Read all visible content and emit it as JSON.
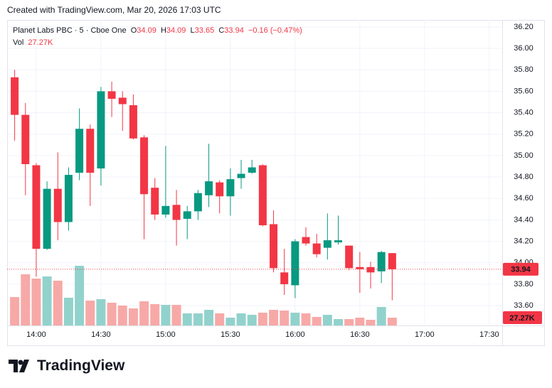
{
  "header": {
    "created": "Created with TradingView.com, Mar 20, 2026 17:03 UTC"
  },
  "footer": {
    "logo": "TradingView"
  },
  "chart_data": {
    "type": "candlestick",
    "symbol": "Planet Labs PBC · 5 · Cboe One",
    "ohlc_prefixes": [
      "O",
      "H",
      "L",
      "C"
    ],
    "change": "−0.16 (−0.47%)",
    "volume_name": "Vol",
    "volume_last_label": "27.27K",
    "x": [
      830,
      835,
      840,
      845,
      850,
      855,
      860,
      865,
      870,
      875,
      880,
      885,
      890,
      895,
      900,
      905,
      910,
      915,
      920,
      925,
      930,
      935,
      940,
      945,
      950,
      955,
      960,
      965,
      970,
      975,
      980,
      985,
      990,
      995,
      1000,
      1005
    ],
    "open": [
      35.73,
      35.38,
      34.91,
      34.13,
      34.69,
      34.38,
      34.84,
      35.25,
      34.88,
      35.6,
      35.54,
      35.47,
      35.17,
      34.7,
      34.45,
      34.54,
      34.41,
      34.48,
      34.63,
      34.75,
      34.62,
      34.79,
      34.84,
      34.91,
      34.36,
      33.91,
      33.79,
      34.24,
      34.18,
      34.14,
      34.19,
      34.16,
      33.96,
      33.96,
      33.92,
      34.09
    ],
    "high": [
      35.8,
      35.49,
      34.93,
      34.76,
      35.03,
      34.89,
      35.44,
      35.29,
      35.64,
      35.69,
      35.6,
      35.57,
      35.19,
      34.79,
      35.09,
      34.68,
      34.53,
      34.68,
      35.11,
      34.77,
      34.88,
      34.96,
      34.96,
      34.92,
      34.49,
      34.13,
      34.22,
      34.33,
      34.27,
      34.46,
      34.44,
      34.16,
      34.1,
      34.01,
      34.11,
      34.09
    ],
    "low": [
      35.14,
      34.63,
      33.87,
      34.12,
      34.21,
      34.3,
      34.77,
      34.53,
      34.72,
      35.36,
      35.23,
      35.15,
      34.22,
      34.4,
      34.42,
      34.16,
      34.22,
      34.4,
      34.52,
      34.46,
      34.44,
      34.69,
      34.83,
      34.34,
      33.91,
      33.7,
      33.67,
      34.16,
      34.05,
      34.03,
      34.17,
      33.93,
      33.72,
      33.76,
      33.81,
      33.65
    ],
    "close": [
      35.38,
      34.92,
      34.13,
      34.69,
      34.38,
      34.82,
      35.25,
      34.84,
      35.6,
      35.53,
      35.48,
      35.16,
      34.64,
      34.45,
      34.53,
      34.4,
      34.48,
      34.65,
      34.76,
      34.62,
      34.78,
      34.83,
      34.89,
      34.35,
      33.95,
      33.8,
      34.2,
      34.18,
      34.08,
      34.21,
      34.21,
      33.95,
      33.94,
      33.91,
      34.1,
      33.94
    ],
    "volume": [
      99160,
      178490,
      163610,
      171050,
      156180,
      96680,
      208240,
      86770,
      91720,
      79330,
      69410,
      59500,
      84290,
      74370,
      71890,
      71890,
      42140,
      42140,
      54540,
      42140,
      27270,
      42140,
      37190,
      44620,
      54540,
      52060,
      44620,
      42140,
      29750,
      37190,
      22310,
      22310,
      27270,
      19830,
      64450,
      27270
    ],
    "up_color": "#089981",
    "down_color": "#f23645",
    "volume_up_color": "#92d2cc",
    "volume_down_color": "#f7a9a7",
    "xlim": [
      826.5,
      1056
    ],
    "xticks": [
      {
        "value": 840,
        "label": "14:00"
      },
      {
        "value": 870,
        "label": "14:30"
      },
      {
        "value": 900,
        "label": "15:00"
      },
      {
        "value": 930,
        "label": "15:30"
      },
      {
        "value": 960,
        "label": "16:00"
      },
      {
        "value": 990,
        "label": "16:30"
      },
      {
        "value": 1020,
        "label": "17:00"
      },
      {
        "value": 1050,
        "label": "17:30"
      }
    ],
    "ylim": [
      33.415,
      36.266
    ],
    "yticks": [
      {
        "value": 33.6,
        "label": "33.60"
      },
      {
        "value": 33.8,
        "label": "33.80"
      },
      {
        "value": 34.0,
        "label": "34.00"
      },
      {
        "value": 34.2,
        "label": "34.20"
      },
      {
        "value": 34.4,
        "label": "34.40"
      },
      {
        "value": 34.6,
        "label": "34.60"
      },
      {
        "value": 34.8,
        "label": "34.80"
      },
      {
        "value": 35.0,
        "label": "35.00"
      },
      {
        "value": 35.2,
        "label": "35.20"
      },
      {
        "value": 35.4,
        "label": "35.40"
      },
      {
        "value": 35.6,
        "label": "35.60"
      },
      {
        "value": 35.8,
        "label": "35.80"
      },
      {
        "value": 36.0,
        "label": "36.00"
      },
      {
        "value": 36.2,
        "label": "36.20"
      }
    ],
    "volume_ylim": [
      0,
      272700
    ],
    "grid": true
  }
}
